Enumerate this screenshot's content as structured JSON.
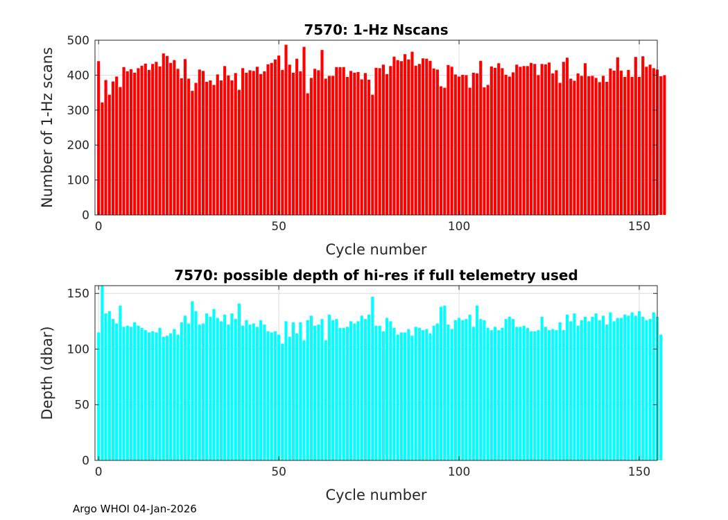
{
  "footer": "Argo WHOI 04-Jan-2026",
  "chart_data": [
    {
      "type": "bar",
      "title": "7570: 1-Hz Nscans",
      "xlabel": "Cycle number",
      "ylabel": "Number of 1-Hz scans",
      "xlim": [
        -1,
        155
      ],
      "ylim": [
        0,
        500
      ],
      "xticks": [
        0,
        50,
        100,
        150
      ],
      "yticks": [
        0,
        100,
        200,
        300,
        400,
        500
      ],
      "grid": true,
      "color": "#ff0000",
      "x_start": 0,
      "values": [
        440,
        322,
        386,
        344,
        382,
        396,
        366,
        423,
        411,
        417,
        407,
        420,
        427,
        433,
        415,
        432,
        438,
        425,
        462,
        455,
        435,
        443,
        418,
        391,
        446,
        390,
        355,
        378,
        416,
        412,
        381,
        385,
        372,
        402,
        385,
        426,
        399,
        385,
        406,
        358,
        420,
        407,
        414,
        412,
        424,
        403,
        411,
        431,
        435,
        445,
        456,
        415,
        487,
        430,
        407,
        447,
        411,
        481,
        348,
        392,
        418,
        414,
        472,
        390,
        398,
        398,
        423,
        423,
        423,
        395,
        412,
        407,
        409,
        388,
        406,
        387,
        344,
        421,
        420,
        430,
        403,
        426,
        453,
        443,
        440,
        460,
        445,
        467,
        427,
        432,
        448,
        447,
        441,
        419,
        416,
        368,
        364,
        429,
        424,
        402,
        396,
        401,
        400,
        364,
        407,
        405,
        441,
        365,
        372,
        425,
        421,
        434,
        420,
        401,
        396,
        408,
        430,
        424,
        426,
        426,
        435,
        432,
        400,
        432,
        431,
        436,
        405,
        414,
        378,
        438,
        450,
        390,
        384,
        405,
        398,
        434,
        397,
        398,
        392,
        380,
        398,
        381,
        419,
        413,
        451,
        413,
        395,
        415,
        395,
        452,
        395,
        454,
        424,
        430,
        420,
        416,
        397,
        400
      ]
    },
    {
      "type": "bar",
      "title": "7570: possible depth of hi-res if full telemetry used",
      "xlabel": "Cycle number",
      "ylabel": "Depth (dbar)",
      "xlim": [
        -1,
        155
      ],
      "ylim": [
        0,
        157
      ],
      "xticks": [
        0,
        50,
        100,
        150
      ],
      "yticks": [
        0,
        50,
        100,
        150
      ],
      "grid": true,
      "color": "#00ffff",
      "x_start": 0,
      "values": [
        115,
        157,
        132,
        134,
        127,
        123,
        139,
        120,
        121,
        120,
        124,
        121,
        119,
        117,
        115,
        116,
        115,
        119,
        111,
        112,
        114,
        118,
        113,
        124,
        130,
        123,
        143,
        134,
        122,
        123,
        132,
        129,
        136,
        128,
        125,
        131,
        122,
        132,
        127,
        141,
        121,
        126,
        122,
        123,
        120,
        126,
        122,
        116,
        115,
        116,
        113,
        105,
        125,
        111,
        124,
        114,
        124,
        108,
        126,
        130,
        121,
        122,
        127,
        108,
        131,
        126,
        127,
        119,
        119,
        120,
        125,
        123,
        125,
        130,
        127,
        131,
        147,
        121,
        121,
        116,
        128,
        125,
        119,
        113,
        115,
        115,
        118,
        112,
        120,
        119,
        117,
        118,
        114,
        121,
        123,
        138,
        139,
        122,
        118,
        126,
        128,
        126,
        127,
        131,
        120,
        139,
        127,
        126,
        119,
        117,
        120,
        117,
        119,
        127,
        129,
        127,
        120,
        120,
        121,
        119,
        116,
        116,
        117,
        129,
        120,
        117,
        118,
        117,
        124,
        117,
        131,
        125,
        132,
        121,
        126,
        129,
        125,
        129,
        132,
        126,
        130,
        122,
        133,
        125,
        128,
        128,
        131,
        130,
        133,
        130,
        134,
        129,
        126,
        127,
        133,
        129,
        113
      ]
    }
  ]
}
